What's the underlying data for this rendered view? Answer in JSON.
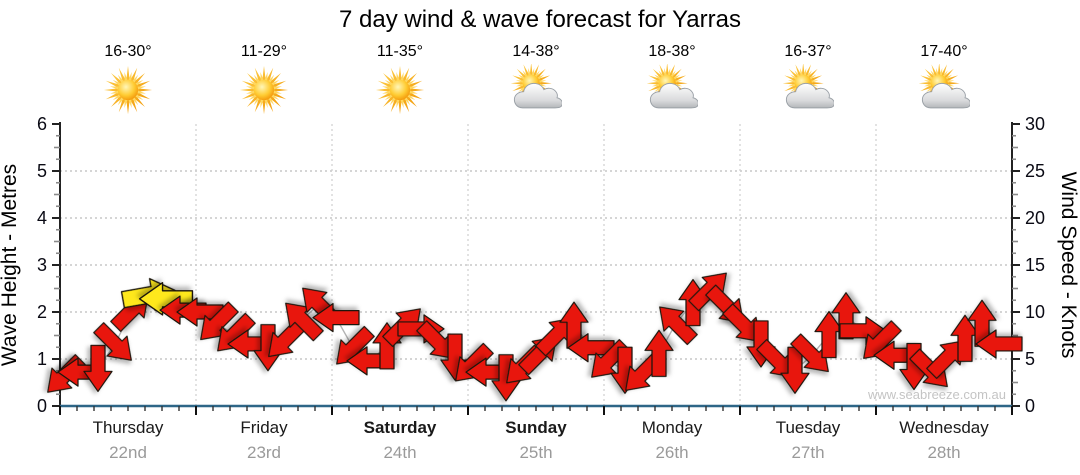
{
  "chart_data": {
    "type": "wind-arrow-timeseries",
    "title": "7 day wind & wave forecast for Yarras",
    "watermark": "www.seabreeze.com.au",
    "left_axis": {
      "label": "Wave Height - Metres",
      "range": [
        0,
        6
      ],
      "ticks": [
        0,
        1,
        2,
        3,
        4,
        5,
        6
      ]
    },
    "right_axis": {
      "label": "Wind Speed - Knots",
      "range": [
        0,
        30
      ],
      "ticks": [
        0,
        5,
        10,
        15,
        20,
        25,
        30
      ]
    },
    "x_axis": {
      "points_per_day": 8,
      "point_interval": "3 hours"
    },
    "legend_note": "arrow vertical position = wind speed in knots; arrow rotation = wind direction (degrees clockwise from east); arrow color category per point",
    "grid": {
      "horizontal_dotted_at_metres": [
        1,
        2,
        3,
        4,
        5
      ],
      "vertical_dotted_at_day_boundaries": true
    },
    "days": [
      {
        "name": "Thursday",
        "date": "22nd",
        "temp": "16-30°",
        "icon": "sun",
        "weekend": false,
        "winds": [
          {
            "kn": 3.2,
            "dir": 135,
            "color": "red"
          },
          {
            "kn": 3.6,
            "dir": 180,
            "color": "red"
          },
          {
            "kn": 4.0,
            "dir": 90,
            "color": "red"
          },
          {
            "kn": 6.6,
            "dir": 45,
            "color": "red"
          },
          {
            "kn": 10.2,
            "dir": 315,
            "color": "red"
          },
          {
            "kn": 11.8,
            "dir": 350,
            "color": "yellow"
          },
          {
            "kn": 11.4,
            "dir": 180,
            "color": "yellow"
          },
          {
            "kn": 10.2,
            "dir": 180,
            "color": "red"
          }
        ]
      },
      {
        "name": "Friday",
        "date": "23rd",
        "temp": "11-29°",
        "icon": "sun",
        "weekend": false,
        "winds": [
          {
            "kn": 10.0,
            "dir": 180,
            "color": "red"
          },
          {
            "kn": 8.8,
            "dir": 135,
            "color": "red"
          },
          {
            "kn": 7.6,
            "dir": 135,
            "color": "red"
          },
          {
            "kn": 6.6,
            "dir": 180,
            "color": "red"
          },
          {
            "kn": 6.2,
            "dir": 90,
            "color": "red"
          },
          {
            "kn": 7.0,
            "dir": 135,
            "color": "red"
          },
          {
            "kn": 9.2,
            "dir": 225,
            "color": "red"
          },
          {
            "kn": 10.8,
            "dir": 225,
            "color": "red"
          }
        ]
      },
      {
        "name": "Saturday",
        "date": "24th",
        "temp": "11-35°",
        "icon": "sun",
        "weekend": true,
        "winds": [
          {
            "kn": 9.4,
            "dir": 180,
            "color": "red"
          },
          {
            "kn": 6.2,
            "dir": 135,
            "color": "red"
          },
          {
            "kn": 4.8,
            "dir": 180,
            "color": "red"
          },
          {
            "kn": 6.4,
            "dir": 270,
            "color": "red"
          },
          {
            "kn": 8.6,
            "dir": 315,
            "color": "red"
          },
          {
            "kn": 8.2,
            "dir": 0,
            "color": "red"
          },
          {
            "kn": 6.8,
            "dir": 45,
            "color": "red"
          },
          {
            "kn": 5.2,
            "dir": 90,
            "color": "red"
          }
        ]
      },
      {
        "name": "Sunday",
        "date": "25th",
        "temp": "14-38°",
        "icon": "suncloud",
        "weekend": true,
        "winds": [
          {
            "kn": 4.4,
            "dir": 135,
            "color": "red"
          },
          {
            "kn": 3.6,
            "dir": 180,
            "color": "red"
          },
          {
            "kn": 3.0,
            "dir": 90,
            "color": "red"
          },
          {
            "kn": 4.2,
            "dir": 135,
            "color": "red"
          },
          {
            "kn": 5.6,
            "dir": 315,
            "color": "red"
          },
          {
            "kn": 7.6,
            "dir": 315,
            "color": "red"
          },
          {
            "kn": 8.6,
            "dir": 270,
            "color": "red"
          },
          {
            "kn": 6.2,
            "dir": 180,
            "color": "red"
          }
        ]
      },
      {
        "name": "Monday",
        "date": "26th",
        "temp": "18-38°",
        "icon": "suncloud",
        "weekend": false,
        "winds": [
          {
            "kn": 4.8,
            "dir": 135,
            "color": "red"
          },
          {
            "kn": 3.8,
            "dir": 90,
            "color": "red"
          },
          {
            "kn": 3.4,
            "dir": 135,
            "color": "red"
          },
          {
            "kn": 5.6,
            "dir": 270,
            "color": "red"
          },
          {
            "kn": 8.8,
            "dir": 225,
            "color": "red"
          },
          {
            "kn": 11.0,
            "dir": 270,
            "color": "red"
          },
          {
            "kn": 12.4,
            "dir": 315,
            "color": "red"
          },
          {
            "kn": 10.6,
            "dir": 45,
            "color": "red"
          }
        ]
      },
      {
        "name": "Tuesday",
        "date": "27th",
        "temp": "16-37°",
        "icon": "suncloud",
        "weekend": false,
        "winds": [
          {
            "kn": 8.6,
            "dir": 45,
            "color": "red"
          },
          {
            "kn": 6.6,
            "dir": 90,
            "color": "red"
          },
          {
            "kn": 4.8,
            "dir": 45,
            "color": "red"
          },
          {
            "kn": 3.8,
            "dir": 90,
            "color": "red"
          },
          {
            "kn": 5.4,
            "dir": 45,
            "color": "red"
          },
          {
            "kn": 7.6,
            "dir": 270,
            "color": "red"
          },
          {
            "kn": 9.6,
            "dir": 270,
            "color": "red"
          },
          {
            "kn": 8.0,
            "dir": 0,
            "color": "red"
          }
        ]
      },
      {
        "name": "Wednesday",
        "date": "28th",
        "temp": "17-40°",
        "icon": "suncloud",
        "weekend": false,
        "winds": [
          {
            "kn": 6.8,
            "dir": 135,
            "color": "red"
          },
          {
            "kn": 5.4,
            "dir": 180,
            "color": "red"
          },
          {
            "kn": 4.2,
            "dir": 90,
            "color": "red"
          },
          {
            "kn": 3.8,
            "dir": 45,
            "color": "red"
          },
          {
            "kn": 5.2,
            "dir": 315,
            "color": "red"
          },
          {
            "kn": 7.2,
            "dir": 270,
            "color": "red"
          },
          {
            "kn": 8.8,
            "dir": 270,
            "color": "red"
          },
          {
            "kn": 6.6,
            "dir": 180,
            "color": "red"
          }
        ]
      }
    ],
    "colors": {
      "arrow_red": "#e8130c",
      "arrow_yellow": "#ffe81a",
      "arrow_outline": "#1a1408",
      "connector_line": "#b3b3b3",
      "gridline": "#bcbcbc",
      "day_boundary_line": "#cfcfcf",
      "bottom_axis": "#2e6687",
      "side_axis": "#222222",
      "minor_tick": "#8a8a8a",
      "date_text": "#9a9a9a",
      "watermark_text": "#c4c4c4"
    }
  }
}
